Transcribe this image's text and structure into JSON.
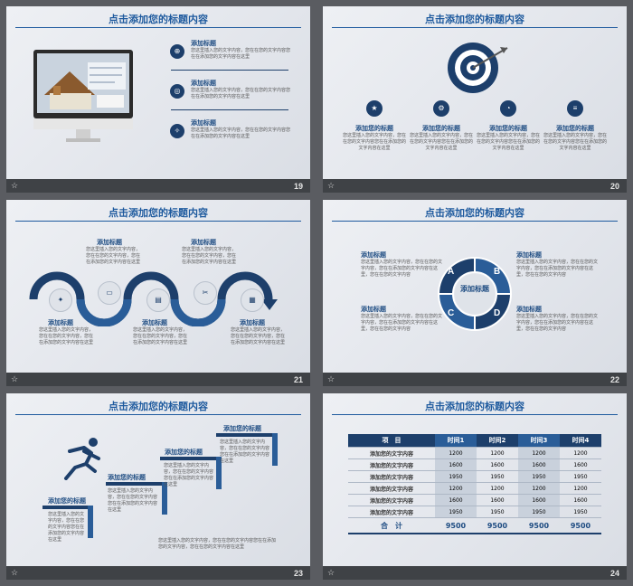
{
  "slides": [
    {
      "title": "点击添加您的标题内容",
      "page": "19",
      "items": [
        {
          "heading": "添加标题",
          "text": "您这里插入您的文字内容，您在在您的文字内容您在在添加您的文字内容在这里",
          "icon": "globe-icon"
        },
        {
          "heading": "添加标题",
          "text": "您这里插入您的文字内容，您在在您的文字内容您在在添加您的文字内容在这里",
          "icon": "target-icon"
        },
        {
          "heading": "添加标题",
          "text": "您这里插入您的文字内容，您在在您的文字内容您在在添加您的文字内容在这里",
          "icon": "compass-icon"
        }
      ]
    },
    {
      "title": "点击添加您的标题内容",
      "page": "20",
      "items": [
        {
          "heading": "添加您的标题",
          "text": "您这里插入您的文字内容，您在在您的文字内容您在在添加您的文字内容在这里"
        },
        {
          "heading": "添加您的标题",
          "text": "您这里插入您的文字内容，您在在您的文字内容您在在添加您的文字内容在这里"
        },
        {
          "heading": "添加您的标题",
          "text": "您这里插入您的文字内容，您在在您的文字内容您在在添加您的文字内容在这里"
        },
        {
          "heading": "添加您的标题",
          "text": "您这里插入您的文字内容，您在在您的文字内容您在在添加您的文字内容在这里"
        }
      ]
    },
    {
      "title": "点击添加您的标题内容",
      "page": "21",
      "items": [
        {
          "heading": "添加标题",
          "text": "您这里插入您的文字内容，您在在您的文字内容，您在在添加您的文字内容在这里"
        },
        {
          "heading": "添加标题",
          "text": "您这里插入您的文字内容，您在在您的文字内容，您在在添加您的文字内容在这里"
        },
        {
          "heading": "添加标题",
          "text": "您这里插入您的文字内容，您在在您的文字内容，您在在添加您的文字内容在这里"
        },
        {
          "heading": "添加标题",
          "text": "您这里插入您的文字内容，您在在您的文字内容，您在在添加您的文字内容在这里"
        },
        {
          "heading": "添加标题",
          "text": "您这里插入您的文字内容，您在在您的文字内容，您在在添加您的文字内容在这里"
        }
      ]
    },
    {
      "title": "点击添加您的标题内容",
      "page": "22",
      "center": "添加标题",
      "letters": [
        "A",
        "B",
        "C",
        "D"
      ],
      "items": [
        {
          "heading": "添加标题",
          "text": "您这里插入您的文字内容，您在在您的文字内容，您在在添加您的文字内容在这里，您在在您的文字内容"
        },
        {
          "heading": "添加标题",
          "text": "您这里插入您的文字内容，您在在您的文字内容，您在在添加您的文字内容在这里，您在在您的文字内容"
        },
        {
          "heading": "添加标题",
          "text": "您这里插入您的文字内容，您在在您的文字内容，您在在添加您的文字内容在这里，您在在您的文字内容"
        },
        {
          "heading": "添加标题",
          "text": "您这里插入您的文字内容，您在在您的文字内容，您在在添加您的文字内容在这里，您在在您的文字内容"
        }
      ]
    },
    {
      "title": "点击添加您的标题内容",
      "page": "23",
      "items": [
        {
          "heading": "添加您的标题",
          "text": "您这里插入您的文字内容，您在在您的文字内容您在在添加您的文字内容在这里"
        },
        {
          "heading": "添加您的标题",
          "text": "您这里插入您的文字内容，您在在您的文字内容您在在添加您的文字内容在这里"
        },
        {
          "heading": "添加您的标题",
          "text": "您这里插入您的文字内容，您在在您的文字内容您在在添加您的文字内容在这里"
        },
        {
          "heading": "添加您的标题",
          "text": "您这里插入您的文字内容，您在在您的文字内容您在在添加您的文字内容在这里"
        }
      ],
      "bottom_text": "您这里插入您的文字内容，您在在您的文字内容您在在添加您的文字内容，您在在您的文字内容在这里"
    },
    {
      "title": "点击添加您的标题内容",
      "page": "24",
      "table": {
        "headers": [
          "项　目",
          "时间1",
          "时间2",
          "时间3",
          "时间4"
        ],
        "rows": [
          [
            "添加您的文字内容",
            "1200",
            "1200",
            "1200",
            "1200"
          ],
          [
            "添加您的文字内容",
            "1600",
            "1600",
            "1600",
            "1600"
          ],
          [
            "添加您的文字内容",
            "1950",
            "1950",
            "1950",
            "1950"
          ],
          [
            "添加您的文字内容",
            "1200",
            "1200",
            "1200",
            "1200"
          ],
          [
            "添加您的文字内容",
            "1600",
            "1600",
            "1600",
            "1600"
          ],
          [
            "添加您的文字内容",
            "1950",
            "1950",
            "1950",
            "1950"
          ]
        ],
        "total": [
          "合　计",
          "9500",
          "9500",
          "9500",
          "9500"
        ]
      }
    }
  ],
  "colors": {
    "accent": "#1d3f6b",
    "accent_light": "#2a5d98",
    "title": "#1e5a9e",
    "footer": "#3f4246",
    "background": "#5a5c61"
  }
}
